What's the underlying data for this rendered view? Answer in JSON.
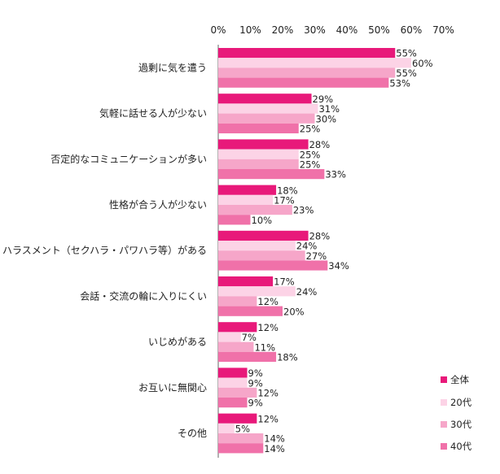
{
  "chart_data": {
    "type": "bar",
    "orientation": "horizontal",
    "categories": [
      "過剰に気を遣う",
      "気軽に話せる人が少ない",
      "否定的なコミュニケーションが多い",
      "性格が合う人が少ない",
      "ハラスメント（セクハラ・パワハラ等）がある",
      "会話・交流の輪に入りにくい",
      "いじめがある",
      "お互いに無関心",
      "その他"
    ],
    "series": [
      {
        "name": "全体",
        "color": "#e8197a",
        "values": [
          55,
          29,
          28,
          18,
          28,
          17,
          12,
          9,
          12
        ]
      },
      {
        "name": "20代",
        "color": "#fcd3e6",
        "values": [
          60,
          31,
          25,
          17,
          24,
          24,
          7,
          9,
          5
        ]
      },
      {
        "name": "30代",
        "color": "#f6a6c9",
        "values": [
          55,
          30,
          25,
          23,
          27,
          12,
          11,
          12,
          14
        ]
      },
      {
        "name": "40代",
        "color": "#f071a9",
        "values": [
          53,
          25,
          33,
          10,
          34,
          20,
          18,
          9,
          14
        ]
      }
    ],
    "value_suffix": "%",
    "xlim": [
      0,
      70
    ],
    "xticks": [
      "0%",
      "10%",
      "20%",
      "30%",
      "40%",
      "50%",
      "60%",
      "70%"
    ],
    "title": "",
    "xlabel": "",
    "ylabel": "",
    "grid": false,
    "legend_position": "bottom-right"
  }
}
